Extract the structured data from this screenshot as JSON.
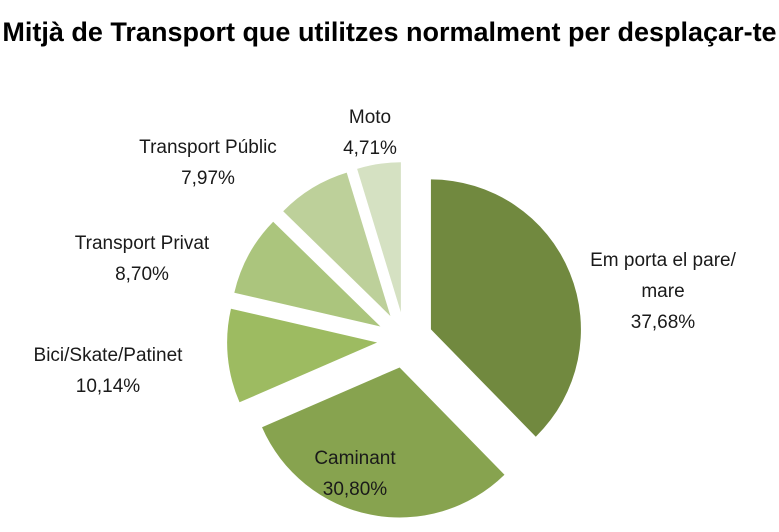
{
  "chart_data": {
    "type": "pie",
    "title": "Mitjà de Transport que utilitzes normalment per desplaçar-te",
    "categories": [
      "Em porta el pare/ mare",
      "Caminant",
      "Bici/Skate/Patinet",
      "Transport Privat",
      "Transport Públic",
      "Moto"
    ],
    "values": [
      37.68,
      30.8,
      10.14,
      8.7,
      7.97,
      4.71
    ],
    "value_labels": [
      "37,68%",
      "30,80%",
      "10,14%",
      "8,70%",
      "7,97%",
      "4,71%"
    ],
    "colors": [
      "#71893f",
      "#87a34f",
      "#9dbb61",
      "#abc57d",
      "#bdd09a",
      "#d5e1c2"
    ]
  }
}
